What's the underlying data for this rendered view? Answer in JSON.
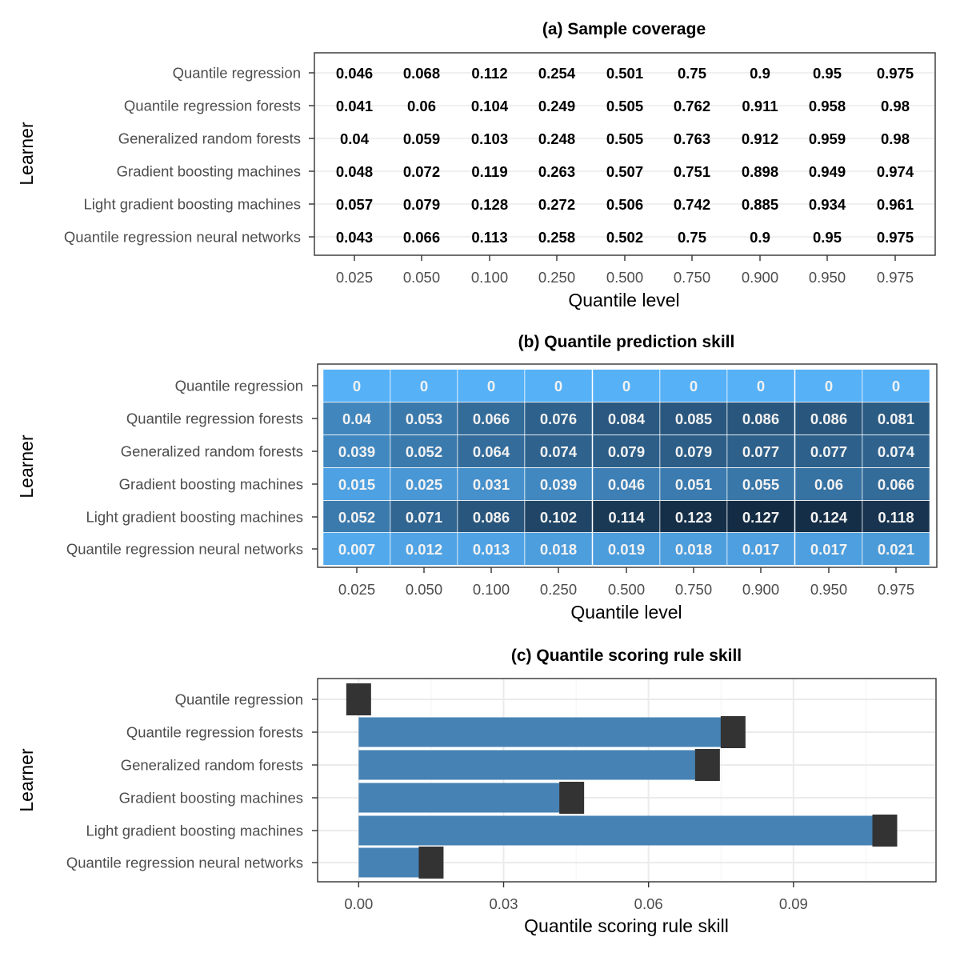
{
  "chart_data": [
    {
      "type": "table",
      "title": "(a) Sample coverage",
      "xlabel": "Quantile level",
      "ylabel": "Learner",
      "x_categories": [
        "0.025",
        "0.050",
        "0.100",
        "0.250",
        "0.500",
        "0.750",
        "0.900",
        "0.950",
        "0.975"
      ],
      "y_categories": [
        "Quantile regression",
        "Quantile regression forests",
        "Generalized random forests",
        "Gradient boosting machines",
        "Light gradient boosting machines",
        "Quantile regression neural networks"
      ],
      "values": [
        [
          "0.046",
          "0.068",
          "0.112",
          "0.254",
          "0.501",
          "0.75",
          "0.9",
          "0.95",
          "0.975"
        ],
        [
          "0.041",
          "0.06",
          "0.104",
          "0.249",
          "0.505",
          "0.762",
          "0.911",
          "0.958",
          "0.98"
        ],
        [
          "0.04",
          "0.059",
          "0.103",
          "0.248",
          "0.505",
          "0.763",
          "0.912",
          "0.959",
          "0.98"
        ],
        [
          "0.048",
          "0.072",
          "0.119",
          "0.263",
          "0.507",
          "0.751",
          "0.898",
          "0.949",
          "0.974"
        ],
        [
          "0.057",
          "0.079",
          "0.128",
          "0.272",
          "0.506",
          "0.742",
          "0.885",
          "0.934",
          "0.961"
        ],
        [
          "0.043",
          "0.066",
          "0.113",
          "0.258",
          "0.502",
          "0.75",
          "0.9",
          "0.95",
          "0.975"
        ]
      ],
      "grid": true
    },
    {
      "type": "heatmap",
      "title": "(b) Quantile prediction skill",
      "xlabel": "Quantile level",
      "ylabel": "Learner",
      "x_categories": [
        "0.025",
        "0.050",
        "0.100",
        "0.250",
        "0.500",
        "0.750",
        "0.900",
        "0.950",
        "0.975"
      ],
      "y_categories": [
        "Quantile regression",
        "Quantile regression forests",
        "Generalized random forests",
        "Gradient boosting machines",
        "Light gradient boosting machines",
        "Quantile regression neural networks"
      ],
      "values": [
        [
          "0",
          "0",
          "0",
          "0",
          "0",
          "0",
          "0",
          "0",
          "0"
        ],
        [
          "0.04",
          "0.053",
          "0.066",
          "0.076",
          "0.084",
          "0.085",
          "0.086",
          "0.086",
          "0.081"
        ],
        [
          "0.039",
          "0.052",
          "0.064",
          "0.074",
          "0.079",
          "0.079",
          "0.077",
          "0.077",
          "0.074"
        ],
        [
          "0.015",
          "0.025",
          "0.031",
          "0.039",
          "0.046",
          "0.051",
          "0.055",
          "0.06",
          "0.066"
        ],
        [
          "0.052",
          "0.071",
          "0.086",
          "0.102",
          "0.114",
          "0.123",
          "0.127",
          "0.124",
          "0.118"
        ],
        [
          "0.007",
          "0.012",
          "0.013",
          "0.018",
          "0.019",
          "0.018",
          "0.017",
          "0.017",
          "0.021"
        ]
      ],
      "color_low": "#56b1f7",
      "color_high": "#132b43"
    },
    {
      "type": "bar",
      "orientation": "horizontal",
      "title": "(c) Quantile scoring rule skill",
      "xlabel": "Quantile scoring rule skill",
      "ylabel": "Learner",
      "categories": [
        "Quantile regression",
        "Quantile regression forests",
        "Generalized random forests",
        "Gradient boosting machines",
        "Light gradient boosting machines",
        "Quantile regression neural networks"
      ],
      "values": [
        0.0,
        0.0775,
        0.0722,
        0.0441,
        0.1089,
        0.015
      ],
      "xlim": [
        -0.0085,
        0.1195
      ],
      "xticks": [
        "0.00",
        "0.03",
        "0.06",
        "0.09"
      ],
      "xtick_values": [
        0.0,
        0.03,
        0.06,
        0.09
      ],
      "bar_color": "#4682b4",
      "marker_color": "#333333",
      "grid": true
    }
  ]
}
